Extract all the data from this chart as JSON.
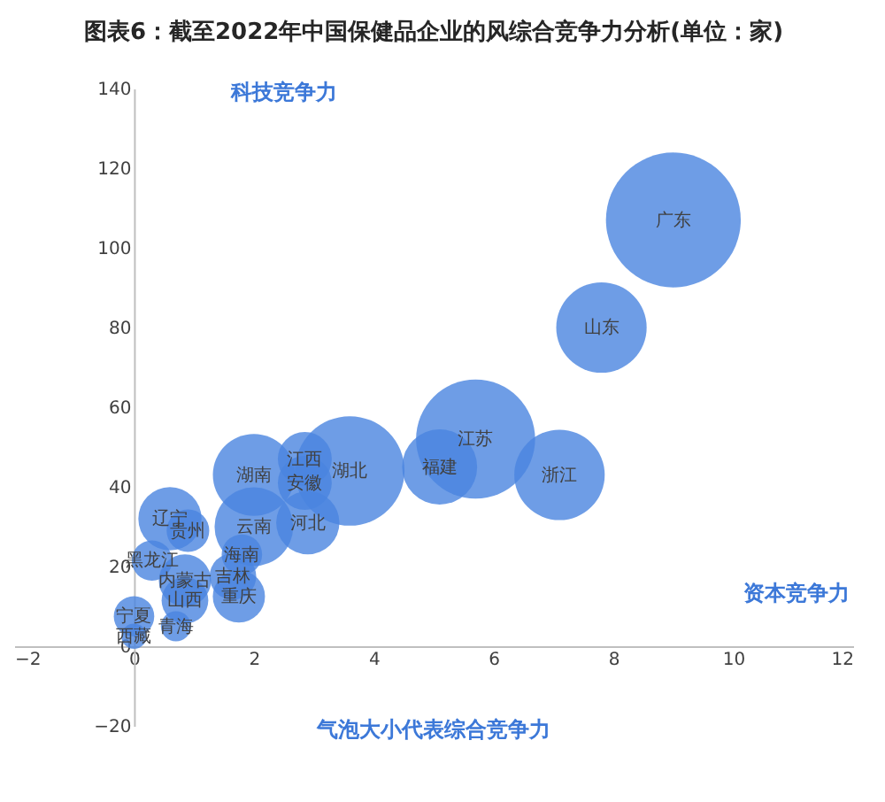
{
  "chart_data": {
    "type": "bubble",
    "title": "图表6：截至2022年中国保健品企业的风综合竞争力分析(单位：家)",
    "xlabel": "资本竞争力",
    "ylabel": "科技竞争力",
    "xlim": [
      -2,
      12
    ],
    "xticks": [
      -2,
      0,
      2,
      4,
      6,
      8,
      10,
      12
    ],
    "ylim": [
      -20,
      140
    ],
    "yticks": [
      -20,
      0,
      20,
      40,
      60,
      80,
      100,
      120,
      140
    ],
    "series": [
      {
        "color": "#4a84e0",
        "x": [
          9.0,
          7.8,
          5.7,
          7.1,
          5.1,
          3.6,
          2.0,
          2.85,
          2.85,
          2.9,
          2.0,
          1.8,
          0.6,
          0.9,
          0.3,
          0.85,
          1.65,
          1.75,
          0.85,
          0.0,
          0.7,
          0.0
        ],
        "values": [
          107,
          80,
          52,
          43,
          45,
          44,
          43,
          47,
          41,
          31,
          30,
          23,
          32,
          29,
          21.5,
          16.5,
          17.5,
          12.5,
          11.5,
          7.5,
          5,
          2.5
        ],
        "sizes": [
          1,
          0.45,
          0.78,
          0.45,
          0.31,
          0.66,
          0.37,
          0.16,
          0.16,
          0.22,
          0.34,
          0.09,
          0.22,
          0.1,
          0.09,
          0.15,
          0.12,
          0.15,
          0.12,
          0.09,
          0.05,
          0.035
        ]
      }
    ],
    "annotations": [
      {
        "text": "广东",
        "x": 9.0,
        "y": 107
      },
      {
        "text": "山东",
        "x": 7.8,
        "y": 80
      },
      {
        "text": "江苏",
        "x": 5.7,
        "y": 52
      },
      {
        "text": "浙江",
        "x": 7.1,
        "y": 43
      },
      {
        "text": "福建",
        "x": 5.1,
        "y": 45
      },
      {
        "text": "湖北",
        "x": 3.6,
        "y": 44
      },
      {
        "text": "湖南",
        "x": 2.0,
        "y": 43
      },
      {
        "text": "江西",
        "x": 2.85,
        "y": 47
      },
      {
        "text": "安徽",
        "x": 2.85,
        "y": 41
      },
      {
        "text": "河北",
        "x": 2.9,
        "y": 31
      },
      {
        "text": "云南",
        "x": 2.0,
        "y": 30
      },
      {
        "text": "海南",
        "x": 1.8,
        "y": 23
      },
      {
        "text": "辽宁",
        "x": 0.6,
        "y": 32
      },
      {
        "text": "贵州",
        "x": 0.9,
        "y": 29
      },
      {
        "text": "黑龙江",
        "x": 0.3,
        "y": 21.5
      },
      {
        "text": "内蒙古",
        "x": 0.85,
        "y": 16.5
      },
      {
        "text": "吉林",
        "x": 1.65,
        "y": 17.5
      },
      {
        "text": "重庆",
        "x": 1.75,
        "y": 12.5
      },
      {
        "text": "山西",
        "x": 0.85,
        "y": 11.5
      },
      {
        "text": "宁夏",
        "x": 0.0,
        "y": 7.5
      },
      {
        "text": "青海",
        "x": 0.7,
        "y": 5
      },
      {
        "text": "西藏",
        "x": 0.0,
        "y": 2.5
      },
      "气泡大小代表综合竞争力"
    ]
  }
}
